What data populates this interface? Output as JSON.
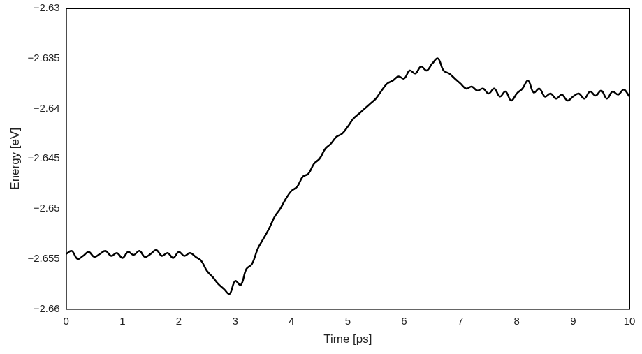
{
  "chart_data": {
    "type": "line",
    "x_label": "Time [ps]",
    "y_label": "Energy [eV]",
    "xlim": [
      0,
      10
    ],
    "xticks": [
      0,
      1,
      2,
      3,
      4,
      5,
      6,
      7,
      8,
      9,
      10
    ],
    "ylim": [
      -2.66,
      -2.63
    ],
    "yticks": [
      {
        "value": -2.66,
        "label": "−2.66"
      },
      {
        "value": -2.655,
        "label": "−2.655"
      },
      {
        "value": -2.65,
        "label": "−2.65"
      },
      {
        "value": -2.645,
        "label": "−2.645"
      },
      {
        "value": -2.64,
        "label": "−2.64"
      },
      {
        "value": -2.635,
        "label": "−2.635"
      },
      {
        "value": -2.63,
        "label": "−2.63"
      }
    ],
    "grid": false,
    "color": "#000000",
    "x": [
      0,
      0.1,
      0.2,
      0.3,
      0.4,
      0.5,
      0.6,
      0.7,
      0.8,
      0.9,
      1,
      1.1,
      1.2,
      1.3,
      1.4,
      1.5,
      1.6,
      1.7,
      1.8,
      1.9,
      2,
      2.1,
      2.2,
      2.3,
      2.4,
      2.5,
      2.6,
      2.7,
      2.8,
      2.9,
      3,
      3.1,
      3.2,
      3.3,
      3.4,
      3.5,
      3.6,
      3.7,
      3.8,
      3.9,
      4,
      4.1,
      4.2,
      4.3,
      4.4,
      4.5,
      4.6,
      4.7,
      4.8,
      4.9,
      5,
      5.1,
      5.2,
      5.3,
      5.4,
      5.5,
      5.6,
      5.7,
      5.8,
      5.9,
      6,
      6.1,
      6.2,
      6.3,
      6.4,
      6.5,
      6.6,
      6.7,
      6.8,
      6.9,
      7,
      7.1,
      7.2,
      7.3,
      7.4,
      7.5,
      7.6,
      7.7,
      7.8,
      7.9,
      8,
      8.1,
      8.2,
      8.3,
      8.4,
      8.5,
      8.6,
      8.7,
      8.8,
      8.9,
      9,
      9.1,
      9.2,
      9.3,
      9.4,
      9.5,
      9.6,
      9.7,
      9.8,
      9.9,
      10
    ],
    "values": [
      -2.6545,
      -2.6542,
      -2.655,
      -2.6547,
      -2.6543,
      -2.6548,
      -2.6545,
      -2.6542,
      -2.6547,
      -2.6544,
      -2.6549,
      -2.6543,
      -2.6546,
      -2.6542,
      -2.6548,
      -2.6545,
      -2.6541,
      -2.6547,
      -2.6544,
      -2.6549,
      -2.6543,
      -2.6547,
      -2.6544,
      -2.6548,
      -2.6552,
      -2.6562,
      -2.6568,
      -2.6575,
      -2.658,
      -2.6585,
      -2.6572,
      -2.6576,
      -2.656,
      -2.6555,
      -2.654,
      -2.653,
      -2.652,
      -2.6508,
      -2.65,
      -2.649,
      -2.6482,
      -2.6478,
      -2.6468,
      -2.6465,
      -2.6455,
      -2.645,
      -2.644,
      -2.6435,
      -2.6428,
      -2.6425,
      -2.6418,
      -2.641,
      -2.6405,
      -2.64,
      -2.6395,
      -2.639,
      -2.6382,
      -2.6375,
      -2.6372,
      -2.6368,
      -2.637,
      -2.6362,
      -2.6365,
      -2.6358,
      -2.6362,
      -2.6355,
      -2.635,
      -2.6362,
      -2.6365,
      -2.637,
      -2.6375,
      -2.638,
      -2.6378,
      -2.6382,
      -2.638,
      -2.6385,
      -2.638,
      -2.6388,
      -2.6383,
      -2.6392,
      -2.6385,
      -2.638,
      -2.6372,
      -2.6384,
      -2.638,
      -2.6388,
      -2.6385,
      -2.639,
      -2.6386,
      -2.6392,
      -2.6388,
      -2.6385,
      -2.639,
      -2.6383,
      -2.6387,
      -2.6382,
      -2.639,
      -2.6383,
      -2.6386,
      -2.6381,
      -2.6388
    ]
  }
}
